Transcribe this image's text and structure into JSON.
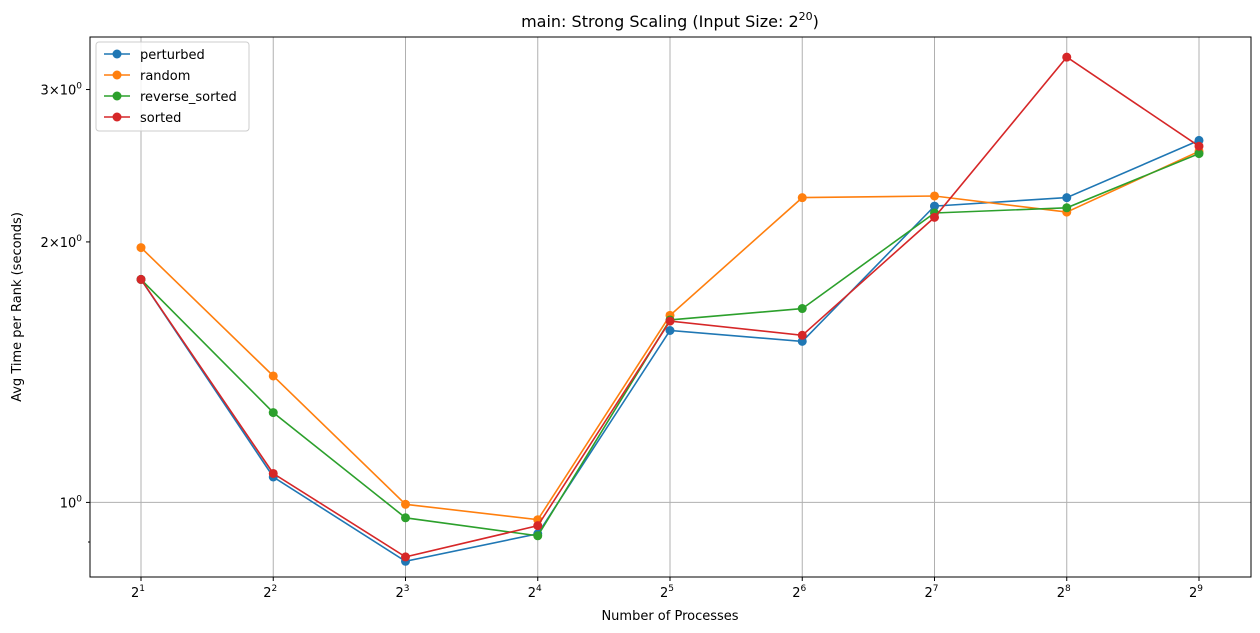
{
  "chart_data": {
    "type": "line",
    "title": "main: Strong Scaling (Input Size: 2^20)",
    "title_parts": {
      "prefix": "main: Strong Scaling (Input Size: 2",
      "exponent": "20",
      "suffix": ")"
    },
    "xlabel": "Number of Processes",
    "ylabel": "Avg Time per Rank (seconds)",
    "x_scale": "log2",
    "y_scale": "log10",
    "x": [
      2,
      4,
      8,
      16,
      32,
      64,
      128,
      256,
      512
    ],
    "x_tick_labels": [
      {
        "base": "2",
        "exp": "1"
      },
      {
        "base": "2",
        "exp": "2"
      },
      {
        "base": "2",
        "exp": "3"
      },
      {
        "base": "2",
        "exp": "4"
      },
      {
        "base": "2",
        "exp": "5"
      },
      {
        "base": "2",
        "exp": "6"
      },
      {
        "base": "2",
        "exp": "7"
      },
      {
        "base": "2",
        "exp": "8"
      },
      {
        "base": "2",
        "exp": "9"
      }
    ],
    "y_ticks": [
      {
        "value": 1,
        "mantissa": "",
        "base": "10",
        "exp": "0"
      },
      {
        "value": 2,
        "mantissa": "2×",
        "base": "10",
        "exp": "0"
      },
      {
        "value": 3,
        "mantissa": "3×",
        "base": "10",
        "exp": "0"
      }
    ],
    "ylim": [
      0.82,
      3.45
    ],
    "grid": true,
    "legend_position": "top-left",
    "series": [
      {
        "name": "perturbed",
        "color": "#1f77b4",
        "values": [
          1.81,
          1.07,
          0.855,
          0.92,
          1.58,
          1.535,
          2.2,
          2.25,
          2.62
        ]
      },
      {
        "name": "random",
        "color": "#ff7f0e",
        "values": [
          1.97,
          1.4,
          0.995,
          0.955,
          1.645,
          2.25,
          2.26,
          2.165,
          2.545
        ]
      },
      {
        "name": "reverse_sorted",
        "color": "#2ca02c",
        "values": [
          1.81,
          1.27,
          0.96,
          0.915,
          1.625,
          1.675,
          2.16,
          2.19,
          2.53
        ]
      },
      {
        "name": "sorted",
        "color": "#d62728",
        "values": [
          1.81,
          1.08,
          0.865,
          0.94,
          1.62,
          1.56,
          2.135,
          3.27,
          2.58
        ]
      }
    ]
  }
}
